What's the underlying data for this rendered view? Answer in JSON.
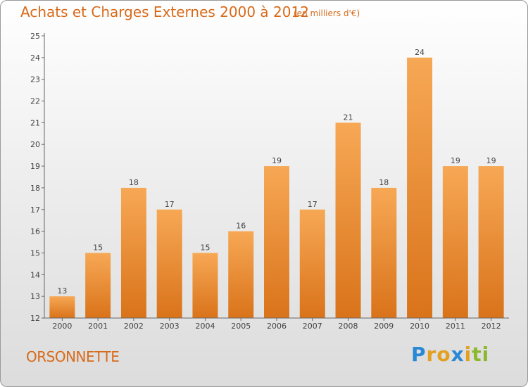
{
  "title": "Achats et Charges Externes 2000 à 2012",
  "unit_note": "(en milliers d'€)",
  "commune": "ORSONNETTE",
  "logo": {
    "text": "Proxiti",
    "letters": [
      "P",
      "r",
      "o",
      "x",
      "i",
      "t",
      "i"
    ],
    "colors": [
      "#2a88d4",
      "#e2a01e",
      "#e2a01e",
      "#2a88d4",
      "#e2a01e",
      "#8bb82c",
      "#8bb82c"
    ]
  },
  "colors": {
    "bar_top": "#f7a855",
    "bar_bottom": "#d9731a",
    "title": "#d86a1a"
  },
  "chart_data": {
    "type": "bar",
    "categories": [
      "2000",
      "2001",
      "2002",
      "2003",
      "2004",
      "2005",
      "2006",
      "2007",
      "2008",
      "2009",
      "2010",
      "2011",
      "2012"
    ],
    "values": [
      13,
      15,
      18,
      17,
      15,
      16,
      19,
      17,
      21,
      18,
      24,
      19,
      19
    ],
    "data_labels": [
      "13",
      "15",
      "18",
      "17",
      "15",
      "16",
      "19",
      "17",
      "21",
      "18",
      "24",
      "19",
      "19"
    ],
    "y_ticks": [
      "12",
      "13",
      "14",
      "15",
      "16",
      "17",
      "18",
      "19",
      "20",
      "21",
      "22",
      "23",
      "24",
      "25"
    ],
    "ylim": [
      12,
      25
    ],
    "title": "Achats et Charges Externes 2000 à 2012",
    "xlabel": "",
    "ylabel": "",
    "grid": false
  }
}
